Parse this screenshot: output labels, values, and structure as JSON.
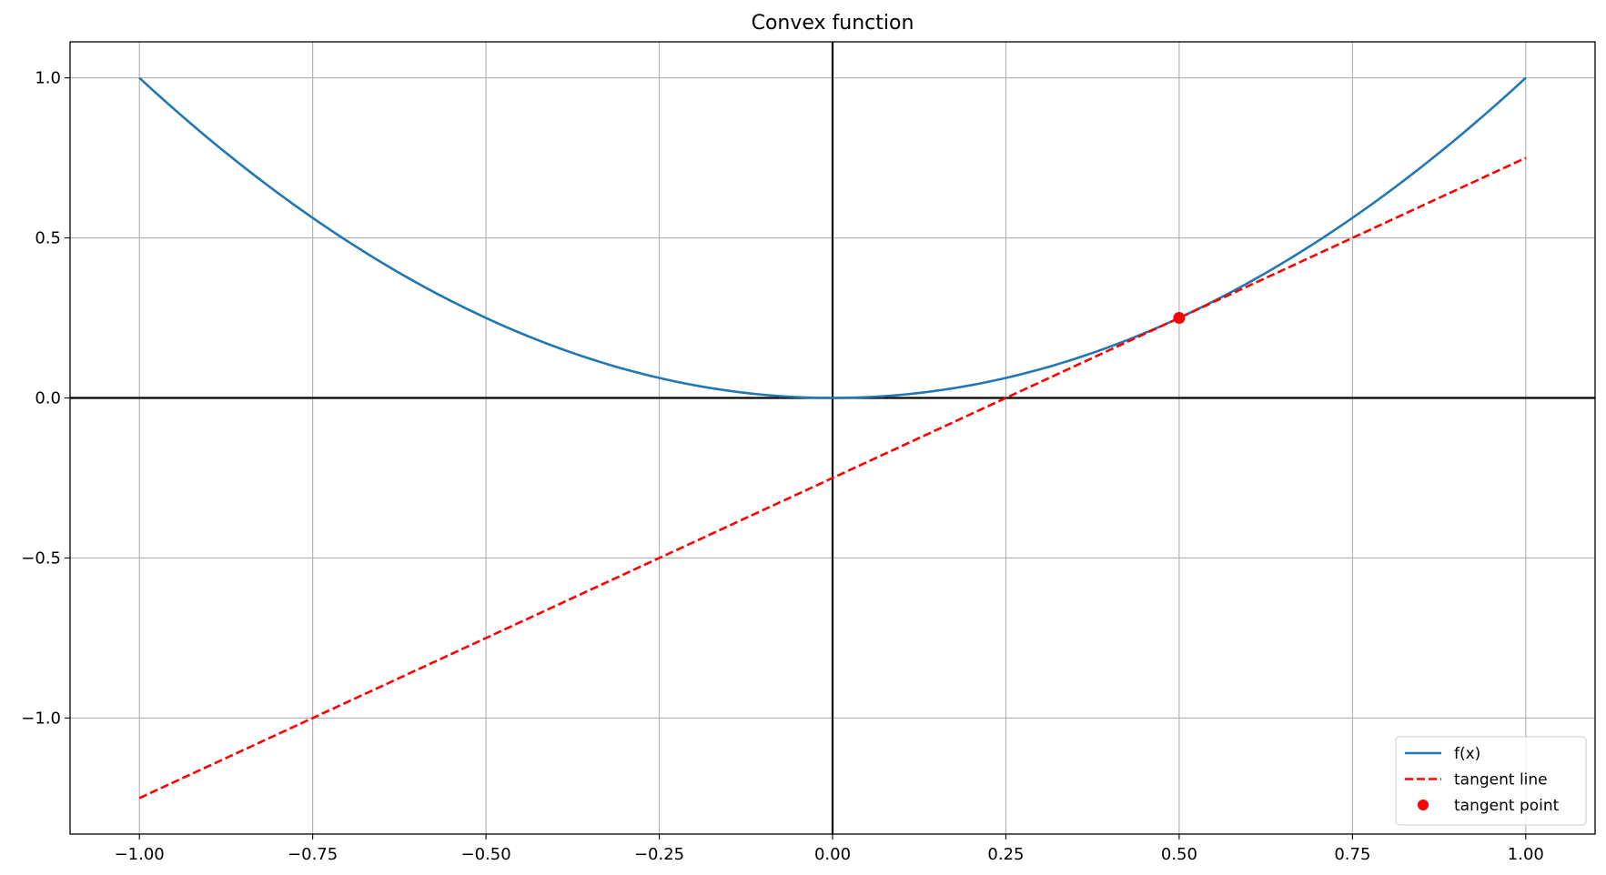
{
  "chart_data": {
    "type": "line",
    "title": "Convex function",
    "xlabel": "",
    "ylabel": "",
    "xlim": [
      -1.1,
      1.1
    ],
    "ylim": [
      -1.3625,
      1.1125
    ],
    "grid": true,
    "xticks": [
      -1.0,
      -0.75,
      -0.5,
      -0.25,
      0.0,
      0.25,
      0.5,
      0.75,
      1.0
    ],
    "xtick_labels": [
      "−1.00",
      "−0.75",
      "−0.50",
      "−0.25",
      "0.00",
      "0.25",
      "0.50",
      "0.75",
      "1.00"
    ],
    "yticks": [
      -1.0,
      -0.5,
      0.0,
      0.5,
      1.0
    ],
    "ytick_labels": [
      "−1.0",
      "−0.5",
      "0.0",
      "0.5",
      "1.0"
    ],
    "reference_lines": [
      {
        "axis": "x",
        "value": 0,
        "color": "#000000"
      },
      {
        "axis": "y",
        "value": 0,
        "color": "#000000"
      }
    ],
    "series": [
      {
        "name": "f(x)",
        "kind": "line",
        "style": "solid",
        "color": "#1f77b4",
        "x": [
          -1.0,
          -0.9,
          -0.8,
          -0.7,
          -0.6,
          -0.5,
          -0.4,
          -0.3,
          -0.2,
          -0.1,
          0.0,
          0.1,
          0.2,
          0.3,
          0.4,
          0.5,
          0.6,
          0.7,
          0.8,
          0.9,
          1.0
        ],
        "y": [
          1.0,
          0.81,
          0.64,
          0.49,
          0.36,
          0.25,
          0.16,
          0.09,
          0.04,
          0.01,
          0.0,
          0.01,
          0.04,
          0.09,
          0.16,
          0.25,
          0.36,
          0.49,
          0.64,
          0.81,
          1.0
        ]
      },
      {
        "name": "tangent line",
        "kind": "line",
        "style": "dashed",
        "color": "#ff0000",
        "x": [
          -1.0,
          1.0
        ],
        "y": [
          -1.25,
          0.75
        ]
      },
      {
        "name": "tangent point",
        "kind": "scatter",
        "color": "#ff0000",
        "x": [
          0.5
        ],
        "y": [
          0.25
        ]
      }
    ],
    "legend_position": "lower-right"
  }
}
